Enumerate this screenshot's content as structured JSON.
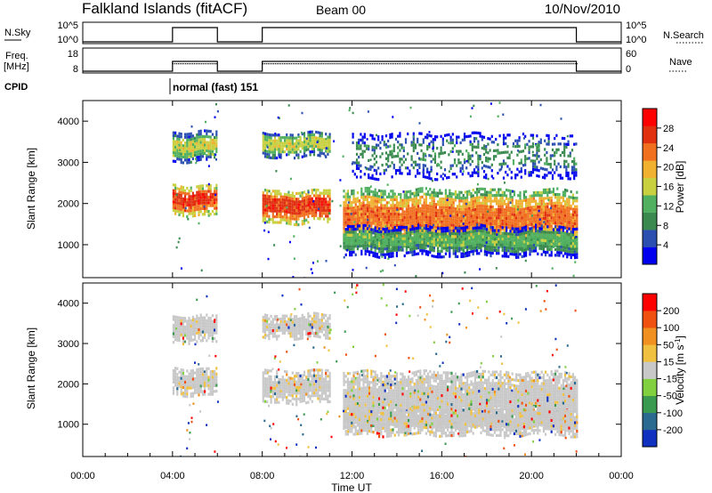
{
  "header": {
    "title": "Falkland Islands (fitACF)",
    "beam": "Beam 00",
    "date": "10/Nov/2010"
  },
  "strip_nsky": {
    "left_label": "N.Sky",
    "right_label": "N.Search",
    "left_ticks": [
      "10^5",
      "10^0"
    ],
    "right_ticks": [
      "10^5",
      "10^0"
    ]
  },
  "strip_freq": {
    "left_label": "Freq.",
    "left_unit": "[MHz]",
    "right_label": "Nave",
    "left_ticks": [
      "18",
      "8"
    ],
    "right_ticks": [
      "60",
      "0"
    ]
  },
  "cpid": {
    "label": "CPID",
    "mode": "normal (fast) 151"
  },
  "colors": {
    "power_scale": [
      "#0000ee",
      "#2a4fb0",
      "#3a8a50",
      "#50b060",
      "#c8d040",
      "#f0b030",
      "#f07020",
      "#e03010",
      "#ff0000"
    ],
    "velocity_scale": [
      "#ff0000",
      "#f05010",
      "#f09020",
      "#f0c040",
      "#c8c8c8",
      "#80d040",
      "#3a9a50",
      "#2a6a90",
      "#1030c0"
    ],
    "data_point": "#ffffff"
  },
  "chart_data": [
    {
      "type": "heatmap",
      "name": "power",
      "ylabel": "Slant Range [km]",
      "xlabel": "Time UT",
      "x_unit": "hours UT",
      "xlim": [
        0,
        24
      ],
      "ylim": [
        200,
        4500
      ],
      "yticks": [
        "1000",
        "2000",
        "3000",
        "4000"
      ],
      "xticks": [
        "00:00",
        "04:00",
        "08:00",
        "12:00",
        "16:00",
        "20:00",
        "00:00"
      ],
      "colorbar": {
        "label": "Power [dB]",
        "ticks": [
          "28",
          "24",
          "20",
          "16",
          "12",
          "8",
          "4"
        ],
        "range": [
          0,
          32
        ]
      },
      "regions": [
        {
          "x": [
            4.0,
            6.0
          ],
          "y": [
            1700,
            2400
          ],
          "value": 28
        },
        {
          "x": [
            4.0,
            6.0
          ],
          "y": [
            3000,
            3700
          ],
          "value": 16
        },
        {
          "x": [
            8.0,
            11.0
          ],
          "y": [
            1500,
            2300
          ],
          "value": 26
        },
        {
          "x": [
            8.0,
            11.0
          ],
          "y": [
            3100,
            3700
          ],
          "value": 14
        },
        {
          "x": [
            11.6,
            22.0
          ],
          "y": [
            900,
            2300
          ],
          "value": 24
        },
        {
          "x": [
            11.6,
            22.0
          ],
          "y": [
            700,
            1400
          ],
          "value": 10
        },
        {
          "x": [
            12.0,
            22.0
          ],
          "y": [
            2600,
            3700
          ],
          "value": 6
        }
      ]
    },
    {
      "type": "heatmap",
      "name": "velocity",
      "ylabel": "Slant Range [km]",
      "xlabel": "Time UT",
      "x_unit": "hours UT",
      "xlim": [
        0,
        24
      ],
      "ylim": [
        200,
        4500
      ],
      "yticks": [
        "1000",
        "2000",
        "3000",
        "4000"
      ],
      "xticks": [
        "00:00",
        "04:00",
        "08:00",
        "12:00",
        "16:00",
        "20:00",
        "00:00"
      ],
      "colorbar": {
        "label_parts": [
          "Velocity [m s",
          "-1",
          "]"
        ],
        "ticks": [
          "200",
          "100",
          "50",
          "15",
          "-15",
          "-50",
          "-100",
          "-200"
        ],
        "range": [
          -250,
          250
        ]
      },
      "regions": [
        {
          "x": [
            4.0,
            6.0
          ],
          "y": [
            1700,
            2400
          ],
          "value": 0
        },
        {
          "x": [
            4.0,
            6.0
          ],
          "y": [
            3000,
            3700
          ],
          "value": 0
        },
        {
          "x": [
            8.0,
            11.0
          ],
          "y": [
            1500,
            2300
          ],
          "value": 0
        },
        {
          "x": [
            8.0,
            11.0
          ],
          "y": [
            3100,
            3700
          ],
          "value": 0
        },
        {
          "x": [
            11.6,
            22.0
          ],
          "y": [
            900,
            2300
          ],
          "value": 0
        },
        {
          "x": [
            11.6,
            22.0
          ],
          "y": [
            700,
            1400
          ],
          "value": -20
        }
      ]
    }
  ]
}
